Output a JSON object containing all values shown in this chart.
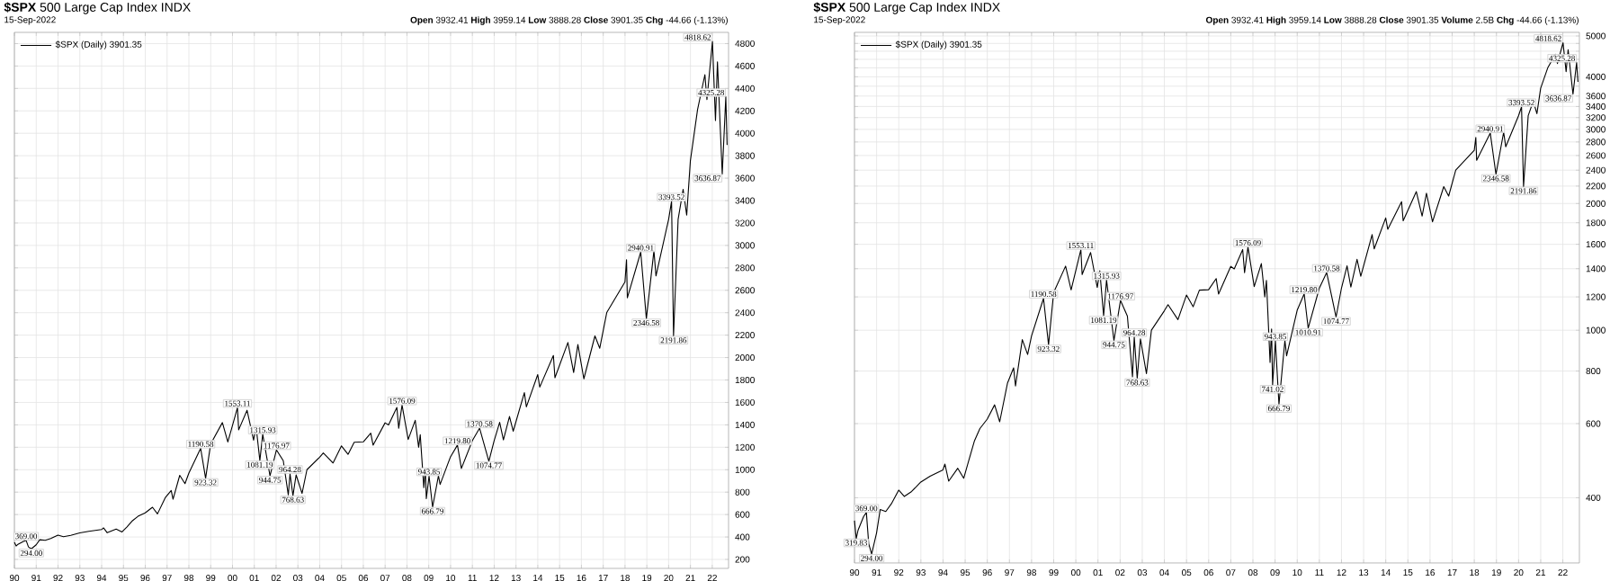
{
  "chart_data": [
    {
      "type": "line",
      "title": "**$SPX** 500 Large Cap Index INDX",
      "subtitle": "**Open** 3932.41 **High** 3959.14 **Low** 3888.28 **Close** 3901.35 **Chg** -44.66 (-1.13%)",
      "series": [
        {
          "name": "$SPX (Daily) 3901.35",
          "color": "#000000",
          "x": [
            "1990-01-01",
            "1990-01-30",
            "1990-03-01",
            "1990-06-01",
            "1990-07-16",
            "1990-08-24",
            "1990-10-11",
            "1990-12-31",
            "1991-03-01",
            "1991-06-01",
            "1991-09-01",
            "1991-12-31",
            "1992-04-01",
            "1992-08-01",
            "1992-12-31",
            "1993-06-01",
            "1993-12-31",
            "1994-02-01",
            "1994-04-04",
            "1994-09-01",
            "1994-12-08",
            "1995-03-01",
            "1995-06-01",
            "1995-09-01",
            "1995-12-31",
            "1996-05-01",
            "1996-07-24",
            "1996-12-01",
            "1997-03-11",
            "1997-04-11",
            "1997-08-01",
            "1997-10-28",
            "1998-01-01",
            "1998-07-17",
            "1998-10-08",
            "1998-12-31",
            "1999-07-16",
            "1999-10-15",
            "2000-03-24",
            "2000-04-14",
            "2000-09-01",
            "2000-12-20",
            "2001-01-31",
            "2001-04-04",
            "2001-05-22",
            "2001-09-21",
            "2002-01-07",
            "2002-05-01",
            "2002-07-24",
            "2002-08-22",
            "2002-10-10",
            "2002-12-02",
            "2003-03-11",
            "2003-06-01",
            "2003-12-31",
            "2004-03-01",
            "2004-08-12",
            "2004-12-31",
            "2005-04-20",
            "2005-08-01",
            "2005-12-31",
            "2006-05-05",
            "2006-06-13",
            "2006-12-31",
            "2007-02-27",
            "2007-07-16",
            "2007-08-16",
            "2007-10-11",
            "2008-01-22",
            "2008-05-19",
            "2008-07-15",
            "2008-08-11",
            "2008-10-10",
            "2008-11-04",
            "2008-11-21",
            "2009-01-06",
            "2009-03-06",
            "2009-06-12",
            "2009-07-10",
            "2009-12-31",
            "2010-04-26",
            "2010-07-01",
            "2010-12-31",
            "2011-05-02",
            "2011-10-04",
            "2011-12-31",
            "2012-04-02",
            "2012-06-04",
            "2012-09-14",
            "2012-11-15",
            "2013-05-21",
            "2013-06-24",
            "2013-12-31",
            "2014-02-03",
            "2014-09-19",
            "2014-10-15",
            "2015-05-20",
            "2015-08-24",
            "2015-11-03",
            "2016-02-11",
            "2016-08-15",
            "2016-11-04",
            "2017-03-01",
            "2017-12-31",
            "2018-01-26",
            "2018-02-09",
            "2018-09-21",
            "2018-12-24",
            "2019-04-30",
            "2019-06-03",
            "2019-12-31",
            "2020-02-19",
            "2020-03-23",
            "2020-06-08",
            "2020-08-31",
            "2020-10-30",
            "2020-12-31",
            "2021-04-30",
            "2021-08-31",
            "2021-10-04",
            "2022-01-04",
            "2022-02-24",
            "2022-03-29",
            "2022-06-17",
            "2022-08-16",
            "2022-09-06",
            "2022-09-15"
          ],
          "values": [
            353,
            319.83,
            335,
            361,
            369.0,
            311,
            294.0,
            330,
            375,
            371,
            387,
            417,
            403,
            414,
            436,
            450,
            466,
            481,
            438,
            470,
            445,
            490,
            545,
            584,
            615,
            665,
            606,
            750,
            814,
            737,
            950,
            876,
            970,
            1190.58,
            923.32,
            1229,
            1420,
            1247,
            1553.11,
            1356,
            1530,
            1264,
            1384,
            1081.19,
            1315.93,
            944.75,
            1176.97,
            1080,
            775,
            964.28,
            768.63,
            954,
            789,
            1000,
            1112,
            1150,
            1060,
            1212,
            1137,
            1245,
            1248,
            1326,
            1219,
            1418,
            1399,
            1555,
            1370,
            1576.09,
            1270,
            1440,
            1200,
            1313,
            839,
            1007,
            741.02,
            943.85,
            666.79,
            946,
            869,
            1115,
            1219.8,
            1010.91,
            1258,
            1370.58,
            1074.77,
            1258,
            1422,
            1266,
            1474,
            1343,
            1687,
            1560,
            1848,
            1737,
            2019,
            1820,
            2134,
            1867,
            2116,
            1810,
            2193,
            2083,
            2401,
            2674,
            2872,
            2533,
            2940.91,
            2346.58,
            2954,
            2728,
            3231,
            3393.52,
            2191.86,
            3233,
            3500,
            3270,
            3756,
            4211,
            4523,
            4300,
            4818.62,
            4114,
            4637,
            3636.87,
            4325.28,
            3900,
            3901.35
          ]
        }
      ],
      "xlim": [
        "1990-01-01",
        "2022-10-01"
      ],
      "xticks": [
        {
          "value": "1990",
          "label": "90"
        },
        {
          "value": "1991",
          "label": "91"
        },
        {
          "value": "1992",
          "label": "92"
        },
        {
          "value": "1993",
          "label": "93"
        },
        {
          "value": "1994",
          "label": "94"
        },
        {
          "value": "1995",
          "label": "95"
        },
        {
          "value": "1996",
          "label": "96"
        },
        {
          "value": "1997",
          "label": "97"
        },
        {
          "value": "1998",
          "label": "98"
        },
        {
          "value": "1999",
          "label": "99"
        },
        {
          "value": "2000",
          "label": "00"
        },
        {
          "value": "2001",
          "label": "01"
        },
        {
          "value": "2002",
          "label": "02"
        },
        {
          "value": "2003",
          "label": "03"
        },
        {
          "value": "2004",
          "label": "04"
        },
        {
          "value": "2005",
          "label": "05"
        },
        {
          "value": "2006",
          "label": "06"
        },
        {
          "value": "2007",
          "label": "07"
        },
        {
          "value": "2008",
          "label": "08"
        },
        {
          "value": "2009",
          "label": "09"
        },
        {
          "value": "2010",
          "label": "10"
        },
        {
          "value": "2011",
          "label": "11"
        },
        {
          "value": "2012",
          "label": "12"
        },
        {
          "value": "2013",
          "label": "13"
        },
        {
          "value": "2014",
          "label": "14"
        },
        {
          "value": "2015",
          "label": "15"
        },
        {
          "value": "2016",
          "label": "16"
        },
        {
          "value": "2017",
          "label": "17"
        },
        {
          "value": "2018",
          "label": "18"
        },
        {
          "value": "2019",
          "label": "19"
        },
        {
          "value": "2020",
          "label": "20"
        },
        {
          "value": "2021",
          "label": "21"
        },
        {
          "value": "2022",
          "label": "22"
        }
      ],
      "ylim": [
        120,
        4900
      ],
      "yticks": [
        200,
        400,
        600,
        800,
        1000,
        1200,
        1400,
        1600,
        1800,
        2000,
        2200,
        2400,
        2600,
        2800,
        3000,
        3200,
        3400,
        3600,
        3800,
        4000,
        4200,
        4400,
        4600,
        4800
      ],
      "grid": true,
      "legend": "top left",
      "annotations": [
        "15-Sep-2022",
        {
          "text": "369.00",
          "x": "1990-07-16",
          "y": 369.0
        },
        {
          "text": "294.00",
          "x": "1990-10-11",
          "y": 294.0
        },
        {
          "text": "1190.58",
          "x": "1998-07-17",
          "y": 1190.58
        },
        {
          "text": "923.32",
          "x": "1998-10-08",
          "y": 923.32
        },
        {
          "text": "1553.11",
          "x": "2000-03-24",
          "y": 1553.11
        },
        {
          "text": "1081.19",
          "x": "2001-04-04",
          "y": 1081.19
        },
        {
          "text": "1315.93",
          "x": "2001-05-22",
          "y": 1315.93
        },
        {
          "text": "944.75",
          "x": "2001-09-21",
          "y": 944.75
        },
        {
          "text": "1176.97",
          "x": "2002-01-07",
          "y": 1176.97
        },
        {
          "text": "964.28",
          "x": "2002-08-22",
          "y": 964.28
        },
        {
          "text": "768.63",
          "x": "2002-10-10",
          "y": 768.63
        },
        {
          "text": "1576.09",
          "x": "2007-10-11",
          "y": 1576.09
        },
        {
          "text": "943.85",
          "x": "2009-01-06",
          "y": 943.85
        },
        {
          "text": "666.79",
          "x": "2009-03-06",
          "y": 666.79
        },
        {
          "text": "1219.80",
          "x": "2010-04-26",
          "y": 1219.8
        },
        {
          "text": "1370.58",
          "x": "2011-05-02",
          "y": 1370.58
        },
        {
          "text": "1074.77",
          "x": "2011-10-04",
          "y": 1074.77
        },
        {
          "text": "2940.91",
          "x": "2018-09-21",
          "y": 2940.91
        },
        {
          "text": "2346.58",
          "x": "2018-12-24",
          "y": 2346.58
        },
        {
          "text": "3393.52",
          "x": "2020-02-19",
          "y": 3393.52
        },
        {
          "text": "2191.86",
          "x": "2020-03-23",
          "y": 2191.86
        },
        {
          "text": "4818.62",
          "x": "2022-01-04",
          "y": 4818.62
        },
        {
          "text": "3636.87",
          "x": "2022-06-17",
          "y": 3636.87
        },
        {
          "text": "4325.28",
          "x": "2022-08-16",
          "y": 4325.28
        }
      ]
    },
    {
      "type": "line",
      "title": "**$SPX** 500 Large Cap Index INDX",
      "subtitle": "**Open** 3932.41 **High** 3959.14 **Low** 3888.28 **Close** 3901.35 **Volume** 2.5B **Chg** -44.66 (-1.13%)",
      "series": [
        {
          "name": "$SPX (Daily) 3901.35",
          "color": "#000000",
          "x": [
            "1990-01-01",
            "1990-01-30",
            "1990-03-01",
            "1990-06-01",
            "1990-07-16",
            "1990-08-24",
            "1990-10-11",
            "1990-12-31",
            "1991-03-01",
            "1991-06-01",
            "1991-09-01",
            "1991-12-31",
            "1992-04-01",
            "1992-08-01",
            "1992-12-31",
            "1993-06-01",
            "1993-12-31",
            "1994-02-01",
            "1994-04-04",
            "1994-09-01",
            "1994-12-08",
            "1995-03-01",
            "1995-06-01",
            "1995-09-01",
            "1995-12-31",
            "1996-05-01",
            "1996-07-24",
            "1996-12-01",
            "1997-03-11",
            "1997-04-11",
            "1997-08-01",
            "1997-10-28",
            "1998-01-01",
            "1998-07-17",
            "1998-10-08",
            "1998-12-31",
            "1999-07-16",
            "1999-10-15",
            "2000-03-24",
            "2000-04-14",
            "2000-09-01",
            "2000-12-20",
            "2001-01-31",
            "2001-04-04",
            "2001-05-22",
            "2001-09-21",
            "2002-01-07",
            "2002-05-01",
            "2002-07-24",
            "2002-08-22",
            "2002-10-10",
            "2002-12-02",
            "2003-03-11",
            "2003-06-01",
            "2003-12-31",
            "2004-03-01",
            "2004-08-12",
            "2004-12-31",
            "2005-04-20",
            "2005-08-01",
            "2005-12-31",
            "2006-05-05",
            "2006-06-13",
            "2006-12-31",
            "2007-02-27",
            "2007-07-16",
            "2007-08-16",
            "2007-10-11",
            "2008-01-22",
            "2008-05-19",
            "2008-07-15",
            "2008-08-11",
            "2008-10-10",
            "2008-11-04",
            "2008-11-21",
            "2009-01-06",
            "2009-03-06",
            "2009-06-12",
            "2009-07-10",
            "2009-12-31",
            "2010-04-26",
            "2010-07-01",
            "2010-12-31",
            "2011-05-02",
            "2011-10-04",
            "2011-12-31",
            "2012-04-02",
            "2012-06-04",
            "2012-09-14",
            "2012-11-15",
            "2013-05-21",
            "2013-06-24",
            "2013-12-31",
            "2014-02-03",
            "2014-09-19",
            "2014-10-15",
            "2015-05-20",
            "2015-08-24",
            "2015-11-03",
            "2016-02-11",
            "2016-08-15",
            "2016-11-04",
            "2017-03-01",
            "2017-12-31",
            "2018-01-26",
            "2018-02-09",
            "2018-09-21",
            "2018-12-24",
            "2019-04-30",
            "2019-06-03",
            "2019-12-31",
            "2020-02-19",
            "2020-03-23",
            "2020-06-08",
            "2020-08-31",
            "2020-10-30",
            "2020-12-31",
            "2021-04-30",
            "2021-08-31",
            "2021-10-04",
            "2022-01-04",
            "2022-02-24",
            "2022-03-29",
            "2022-06-17",
            "2022-08-16",
            "2022-09-06",
            "2022-09-15"
          ],
          "values": [
            353,
            319.83,
            335,
            361,
            369.0,
            311,
            294.0,
            330,
            375,
            371,
            387,
            417,
            403,
            414,
            436,
            450,
            466,
            481,
            438,
            470,
            445,
            490,
            545,
            584,
            615,
            665,
            606,
            750,
            814,
            737,
            950,
            876,
            970,
            1190.58,
            923.32,
            1229,
            1420,
            1247,
            1553.11,
            1356,
            1530,
            1264,
            1384,
            1081.19,
            1315.93,
            944.75,
            1176.97,
            1080,
            775,
            964.28,
            768.63,
            954,
            789,
            1000,
            1112,
            1150,
            1060,
            1212,
            1137,
            1245,
            1248,
            1326,
            1219,
            1418,
            1399,
            1555,
            1370,
            1576.09,
            1270,
            1440,
            1200,
            1313,
            839,
            1007,
            741.02,
            943.85,
            666.79,
            946,
            869,
            1115,
            1219.8,
            1010.91,
            1258,
            1370.58,
            1074.77,
            1258,
            1422,
            1266,
            1474,
            1343,
            1687,
            1560,
            1848,
            1737,
            2019,
            1820,
            2134,
            1867,
            2116,
            1810,
            2193,
            2083,
            2401,
            2674,
            2872,
            2533,
            2940.91,
            2346.58,
            2954,
            2728,
            3231,
            3393.52,
            2191.86,
            3233,
            3500,
            3270,
            3756,
            4211,
            4523,
            4300,
            4818.62,
            4114,
            4637,
            3636.87,
            4325.28,
            3900,
            3901.35
          ]
        }
      ],
      "xlim": [
        "1990-01-01",
        "2022-10-01"
      ],
      "xticks": [
        {
          "value": "1990",
          "label": "90"
        },
        {
          "value": "1991",
          "label": "91"
        },
        {
          "value": "1992",
          "label": "92"
        },
        {
          "value": "1993",
          "label": "93"
        },
        {
          "value": "1994",
          "label": "94"
        },
        {
          "value": "1995",
          "label": "95"
        },
        {
          "value": "1996",
          "label": "96"
        },
        {
          "value": "1997",
          "label": "97"
        },
        {
          "value": "1998",
          "label": "98"
        },
        {
          "value": "1999",
          "label": "99"
        },
        {
          "value": "2000",
          "label": "00"
        },
        {
          "value": "2001",
          "label": "01"
        },
        {
          "value": "2002",
          "label": "02"
        },
        {
          "value": "2003",
          "label": "03"
        },
        {
          "value": "2004",
          "label": "04"
        },
        {
          "value": "2005",
          "label": "05"
        },
        {
          "value": "2006",
          "label": "06"
        },
        {
          "value": "2007",
          "label": "07"
        },
        {
          "value": "2008",
          "label": "08"
        },
        {
          "value": "2009",
          "label": "09"
        },
        {
          "value": "2010",
          "label": "10"
        },
        {
          "value": "2011",
          "label": "11"
        },
        {
          "value": "2012",
          "label": "12"
        },
        {
          "value": "2013",
          "label": "13"
        },
        {
          "value": "2014",
          "label": "14"
        },
        {
          "value": "2015",
          "label": "15"
        },
        {
          "value": "2016",
          "label": "16"
        },
        {
          "value": "2017",
          "label": "17"
        },
        {
          "value": "2018",
          "label": "18"
        },
        {
          "value": "2019",
          "label": "19"
        },
        {
          "value": "2020",
          "label": "20"
        },
        {
          "value": "2021",
          "label": "21"
        },
        {
          "value": "2022",
          "label": "22"
        }
      ],
      "ylim": [
        280,
        5100
      ],
      "yticks": [
        400,
        600,
        800,
        1000,
        1200,
        1400,
        1600,
        1800,
        2000,
        2200,
        2400,
        2600,
        2800,
        3000,
        3200,
        3400,
        3600,
        {
          "value": 3800,
          "label": null
        },
        4000,
        {
          "value": 4200,
          "label": null
        },
        {
          "value": 4400,
          "label": null
        },
        {
          "value": 4600,
          "label": null
        },
        {
          "value": 4800,
          "label": null
        },
        5000
      ],
      "log": "y",
      "grid": true,
      "legend": "top left",
      "annotations": [
        "15-Sep-2022",
        {
          "text": "369.00",
          "x": "1990-07-16",
          "y": 369.0
        },
        {
          "text": "319.83",
          "x": "1990-01-30",
          "y": 319.83
        },
        {
          "text": "294.00",
          "x": "1990-10-11",
          "y": 294.0
        },
        {
          "text": "1190.58",
          "x": "1998-07-17",
          "y": 1190.58
        },
        {
          "text": "923.32",
          "x": "1998-10-08",
          "y": 923.32
        },
        {
          "text": "1553.11",
          "x": "2000-03-24",
          "y": 1553.11
        },
        {
          "text": "1081.19",
          "x": "2001-04-04",
          "y": 1081.19
        },
        {
          "text": "1315.93",
          "x": "2001-05-22",
          "y": 1315.93
        },
        {
          "text": "944.75",
          "x": "2001-09-21",
          "y": 944.75
        },
        {
          "text": "1176.97",
          "x": "2002-01-07",
          "y": 1176.97
        },
        {
          "text": "964.28",
          "x": "2002-08-22",
          "y": 964.28
        },
        {
          "text": "768.63",
          "x": "2002-10-10",
          "y": 768.63
        },
        {
          "text": "1576.09",
          "x": "2007-10-11",
          "y": 1576.09
        },
        {
          "text": "741.02",
          "x": "2008-11-21",
          "y": 741.02
        },
        {
          "text": "943.85",
          "x": "2009-01-06",
          "y": 943.85
        },
        {
          "text": "666.79",
          "x": "2009-03-06",
          "y": 666.79
        },
        {
          "text": "1219.80",
          "x": "2010-04-26",
          "y": 1219.8
        },
        {
          "text": "1010.91",
          "x": "2010-07-01",
          "y": 1010.91
        },
        {
          "text": "1370.58",
          "x": "2011-05-02",
          "y": 1370.58
        },
        {
          "text": "1074.77",
          "x": "2011-10-04",
          "y": 1074.77
        },
        {
          "text": "2940.91",
          "x": "2018-09-21",
          "y": 2940.91
        },
        {
          "text": "2346.58",
          "x": "2018-12-24",
          "y": 2346.58
        },
        {
          "text": "3393.52",
          "x": "2020-02-19",
          "y": 3393.52
        },
        {
          "text": "2191.86",
          "x": "2020-03-23",
          "y": 2191.86
        },
        {
          "text": "4818.62",
          "x": "2022-01-04",
          "y": 4818.62
        },
        {
          "text": "3636.87",
          "x": "2022-06-17",
          "y": 3636.87
        },
        {
          "text": "4325.28",
          "x": "2022-08-16",
          "y": 4325.28
        }
      ]
    }
  ]
}
